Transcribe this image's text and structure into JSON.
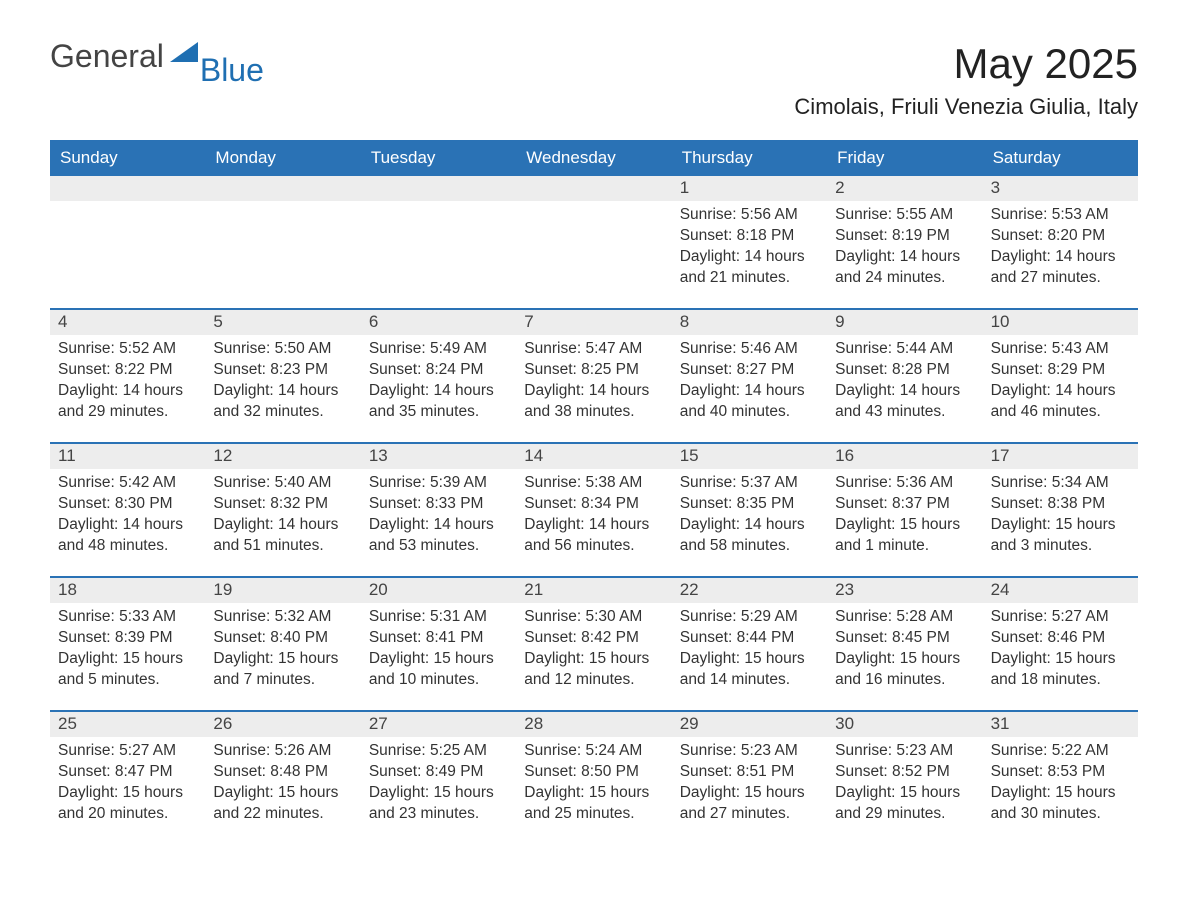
{
  "brand": {
    "text_general": "General",
    "text_blue": "Blue",
    "triangle_color": "#1f6fb2"
  },
  "header": {
    "month_title": "May 2025",
    "location": "Cimolais, Friuli Venezia Giulia, Italy"
  },
  "colors": {
    "header_bg": "#2a72b5",
    "header_text": "#ffffff",
    "day_number_bg": "#ededed",
    "week_divider": "#2a72b5",
    "body_text": "#333333",
    "page_bg": "#ffffff"
  },
  "typography": {
    "month_title_fontsize": 42,
    "location_fontsize": 22,
    "dow_fontsize": 17,
    "day_number_fontsize": 17,
    "body_fontsize": 15.5
  },
  "dow": [
    "Sunday",
    "Monday",
    "Tuesday",
    "Wednesday",
    "Thursday",
    "Friday",
    "Saturday"
  ],
  "labels": {
    "sunrise": "Sunrise: ",
    "sunset": "Sunset: ",
    "daylight": "Daylight: "
  },
  "weeks": [
    [
      null,
      null,
      null,
      null,
      {
        "n": "1",
        "sunrise": "5:56 AM",
        "sunset": "8:18 PM",
        "daylight": "14 hours and 21 minutes."
      },
      {
        "n": "2",
        "sunrise": "5:55 AM",
        "sunset": "8:19 PM",
        "daylight": "14 hours and 24 minutes."
      },
      {
        "n": "3",
        "sunrise": "5:53 AM",
        "sunset": "8:20 PM",
        "daylight": "14 hours and 27 minutes."
      }
    ],
    [
      {
        "n": "4",
        "sunrise": "5:52 AM",
        "sunset": "8:22 PM",
        "daylight": "14 hours and 29 minutes."
      },
      {
        "n": "5",
        "sunrise": "5:50 AM",
        "sunset": "8:23 PM",
        "daylight": "14 hours and 32 minutes."
      },
      {
        "n": "6",
        "sunrise": "5:49 AM",
        "sunset": "8:24 PM",
        "daylight": "14 hours and 35 minutes."
      },
      {
        "n": "7",
        "sunrise": "5:47 AM",
        "sunset": "8:25 PM",
        "daylight": "14 hours and 38 minutes."
      },
      {
        "n": "8",
        "sunrise": "5:46 AM",
        "sunset": "8:27 PM",
        "daylight": "14 hours and 40 minutes."
      },
      {
        "n": "9",
        "sunrise": "5:44 AM",
        "sunset": "8:28 PM",
        "daylight": "14 hours and 43 minutes."
      },
      {
        "n": "10",
        "sunrise": "5:43 AM",
        "sunset": "8:29 PM",
        "daylight": "14 hours and 46 minutes."
      }
    ],
    [
      {
        "n": "11",
        "sunrise": "5:42 AM",
        "sunset": "8:30 PM",
        "daylight": "14 hours and 48 minutes."
      },
      {
        "n": "12",
        "sunrise": "5:40 AM",
        "sunset": "8:32 PM",
        "daylight": "14 hours and 51 minutes."
      },
      {
        "n": "13",
        "sunrise": "5:39 AM",
        "sunset": "8:33 PM",
        "daylight": "14 hours and 53 minutes."
      },
      {
        "n": "14",
        "sunrise": "5:38 AM",
        "sunset": "8:34 PM",
        "daylight": "14 hours and 56 minutes."
      },
      {
        "n": "15",
        "sunrise": "5:37 AM",
        "sunset": "8:35 PM",
        "daylight": "14 hours and 58 minutes."
      },
      {
        "n": "16",
        "sunrise": "5:36 AM",
        "sunset": "8:37 PM",
        "daylight": "15 hours and 1 minute."
      },
      {
        "n": "17",
        "sunrise": "5:34 AM",
        "sunset": "8:38 PM",
        "daylight": "15 hours and 3 minutes."
      }
    ],
    [
      {
        "n": "18",
        "sunrise": "5:33 AM",
        "sunset": "8:39 PM",
        "daylight": "15 hours and 5 minutes."
      },
      {
        "n": "19",
        "sunrise": "5:32 AM",
        "sunset": "8:40 PM",
        "daylight": "15 hours and 7 minutes."
      },
      {
        "n": "20",
        "sunrise": "5:31 AM",
        "sunset": "8:41 PM",
        "daylight": "15 hours and 10 minutes."
      },
      {
        "n": "21",
        "sunrise": "5:30 AM",
        "sunset": "8:42 PM",
        "daylight": "15 hours and 12 minutes."
      },
      {
        "n": "22",
        "sunrise": "5:29 AM",
        "sunset": "8:44 PM",
        "daylight": "15 hours and 14 minutes."
      },
      {
        "n": "23",
        "sunrise": "5:28 AM",
        "sunset": "8:45 PM",
        "daylight": "15 hours and 16 minutes."
      },
      {
        "n": "24",
        "sunrise": "5:27 AM",
        "sunset": "8:46 PM",
        "daylight": "15 hours and 18 minutes."
      }
    ],
    [
      {
        "n": "25",
        "sunrise": "5:27 AM",
        "sunset": "8:47 PM",
        "daylight": "15 hours and 20 minutes."
      },
      {
        "n": "26",
        "sunrise": "5:26 AM",
        "sunset": "8:48 PM",
        "daylight": "15 hours and 22 minutes."
      },
      {
        "n": "27",
        "sunrise": "5:25 AM",
        "sunset": "8:49 PM",
        "daylight": "15 hours and 23 minutes."
      },
      {
        "n": "28",
        "sunrise": "5:24 AM",
        "sunset": "8:50 PM",
        "daylight": "15 hours and 25 minutes."
      },
      {
        "n": "29",
        "sunrise": "5:23 AM",
        "sunset": "8:51 PM",
        "daylight": "15 hours and 27 minutes."
      },
      {
        "n": "30",
        "sunrise": "5:23 AM",
        "sunset": "8:52 PM",
        "daylight": "15 hours and 29 minutes."
      },
      {
        "n": "31",
        "sunrise": "5:22 AM",
        "sunset": "8:53 PM",
        "daylight": "15 hours and 30 minutes."
      }
    ]
  ]
}
